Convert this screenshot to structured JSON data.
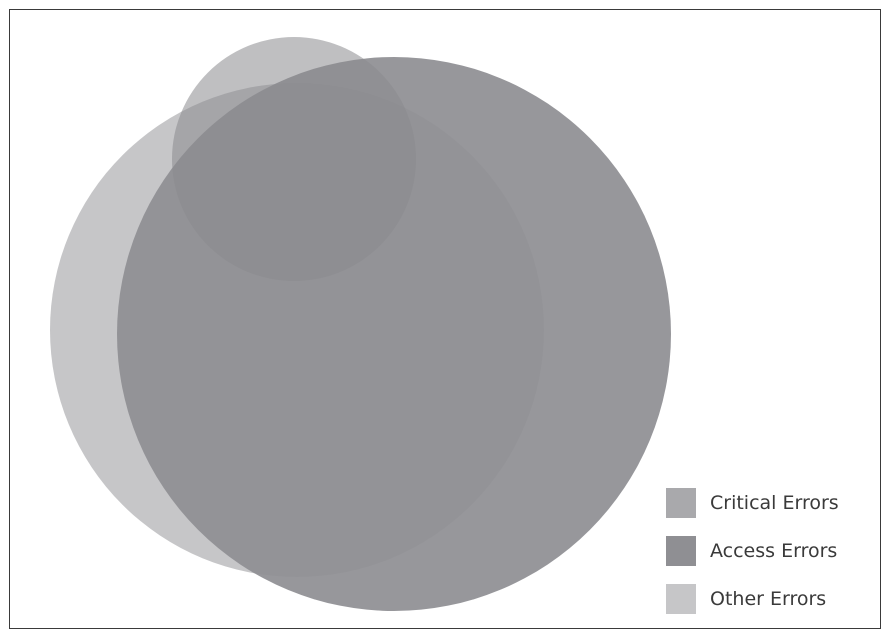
{
  "chart_data": {
    "type": "venn",
    "sets": [
      {
        "name": "Critical Errors",
        "color": "#a9a9ac"
      },
      {
        "name": "Access Errors",
        "color": "#8f8f93"
      },
      {
        "name": "Other Errors",
        "color": "#c6c6c8"
      }
    ]
  },
  "legend": {
    "items": [
      {
        "label": "Critical Errors",
        "color": "#a9a9ac"
      },
      {
        "label": "Access Errors",
        "color": "#8f8f93"
      },
      {
        "label": "Other Errors",
        "color": "#c6c6c8"
      }
    ]
  }
}
